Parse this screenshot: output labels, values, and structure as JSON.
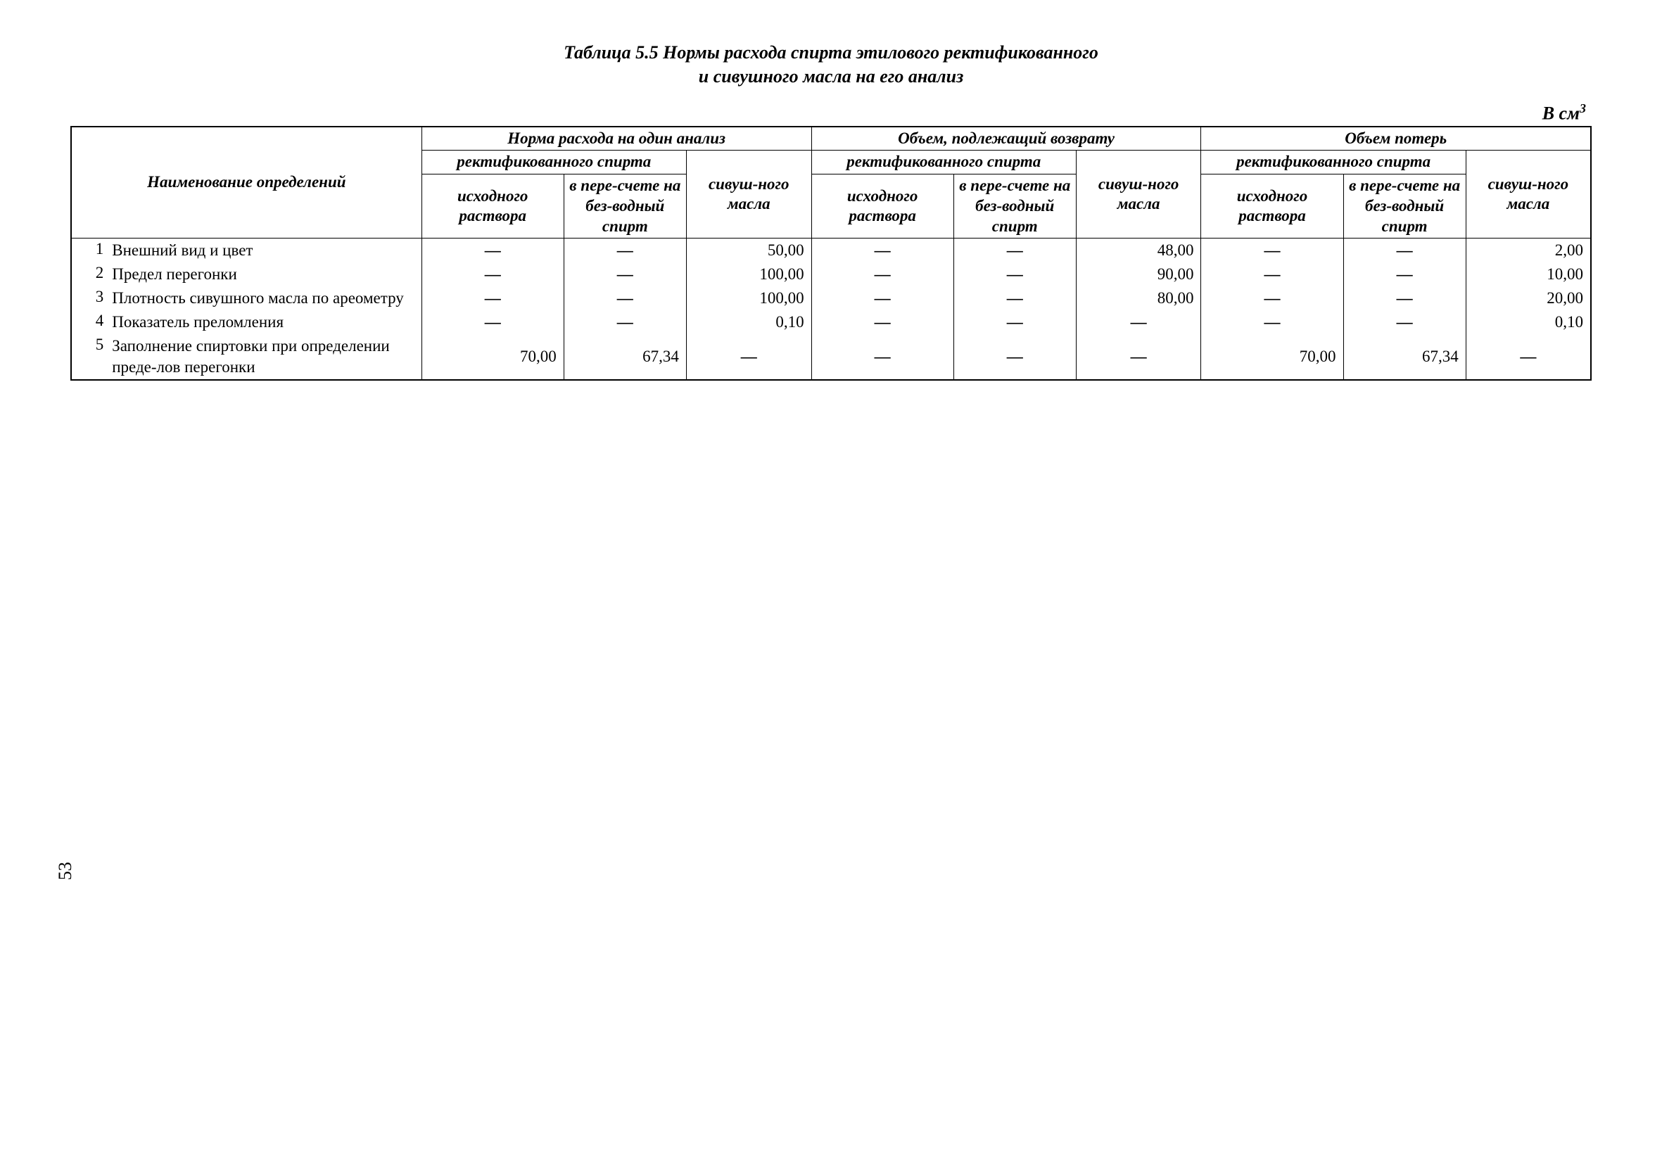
{
  "title_line1": "Таблица 5.5 Нормы расхода спирта этилового ректификованного",
  "title_line2": "и сивушного масла на его анализ",
  "unit_label_prefix": "В см",
  "unit_label_sup": "3",
  "page_number": "53",
  "dash": "—",
  "headers": {
    "name": "Наименование определений",
    "group1": "Норма расхода на один анализ",
    "group2": "Объем, подлежащий возврату",
    "group3": "Объем потерь",
    "rect": "ректификованного спирта",
    "col_a": "исходного раствора",
    "col_b": "в пере-счете на без-водный спирт",
    "col_c": "сивуш-ного масла"
  },
  "rows": [
    {
      "n": "1",
      "label": "Внешний вид и цвет",
      "c": [
        "—",
        "—",
        "50,00",
        "—",
        "—",
        "48,00",
        "—",
        "—",
        "2,00"
      ]
    },
    {
      "n": "2",
      "label": "Предел перегонки",
      "c": [
        "—",
        "—",
        "100,00",
        "—",
        "—",
        "90,00",
        "—",
        "—",
        "10,00"
      ]
    },
    {
      "n": "3",
      "label": "Плотность сивушного масла по ареометру",
      "c": [
        "—",
        "—",
        "100,00",
        "—",
        "—",
        "80,00",
        "—",
        "—",
        "20,00"
      ]
    },
    {
      "n": "4",
      "label": "Показатель преломления",
      "c": [
        "—",
        "—",
        "0,10",
        "—",
        "—",
        "—",
        "—",
        "—",
        "0,10"
      ]
    },
    {
      "n": "5",
      "label": "Заполнение спиртовки при определении преде-лов перегонки",
      "c": [
        "70,00",
        "67,34",
        "—",
        "—",
        "—",
        "—",
        "70,00",
        "67,34",
        "—"
      ]
    }
  ],
  "style": {
    "background_color": "#ffffff",
    "text_color": "#000000",
    "border_color": "#000000",
    "font_family": "Times New Roman",
    "base_fontsize": 24,
    "title_fontsize": 26,
    "header_font_style": "italic bold",
    "outer_border_width": 2,
    "inner_border_width": 1.5
  }
}
